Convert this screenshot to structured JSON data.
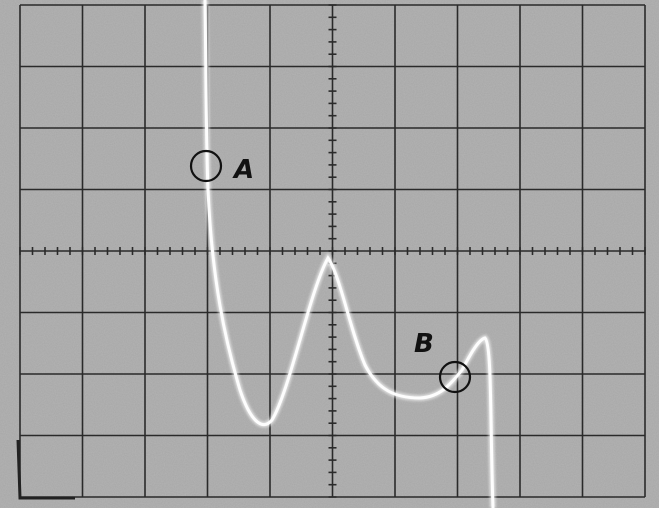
{
  "labels": [
    "A",
    "B"
  ]
}
